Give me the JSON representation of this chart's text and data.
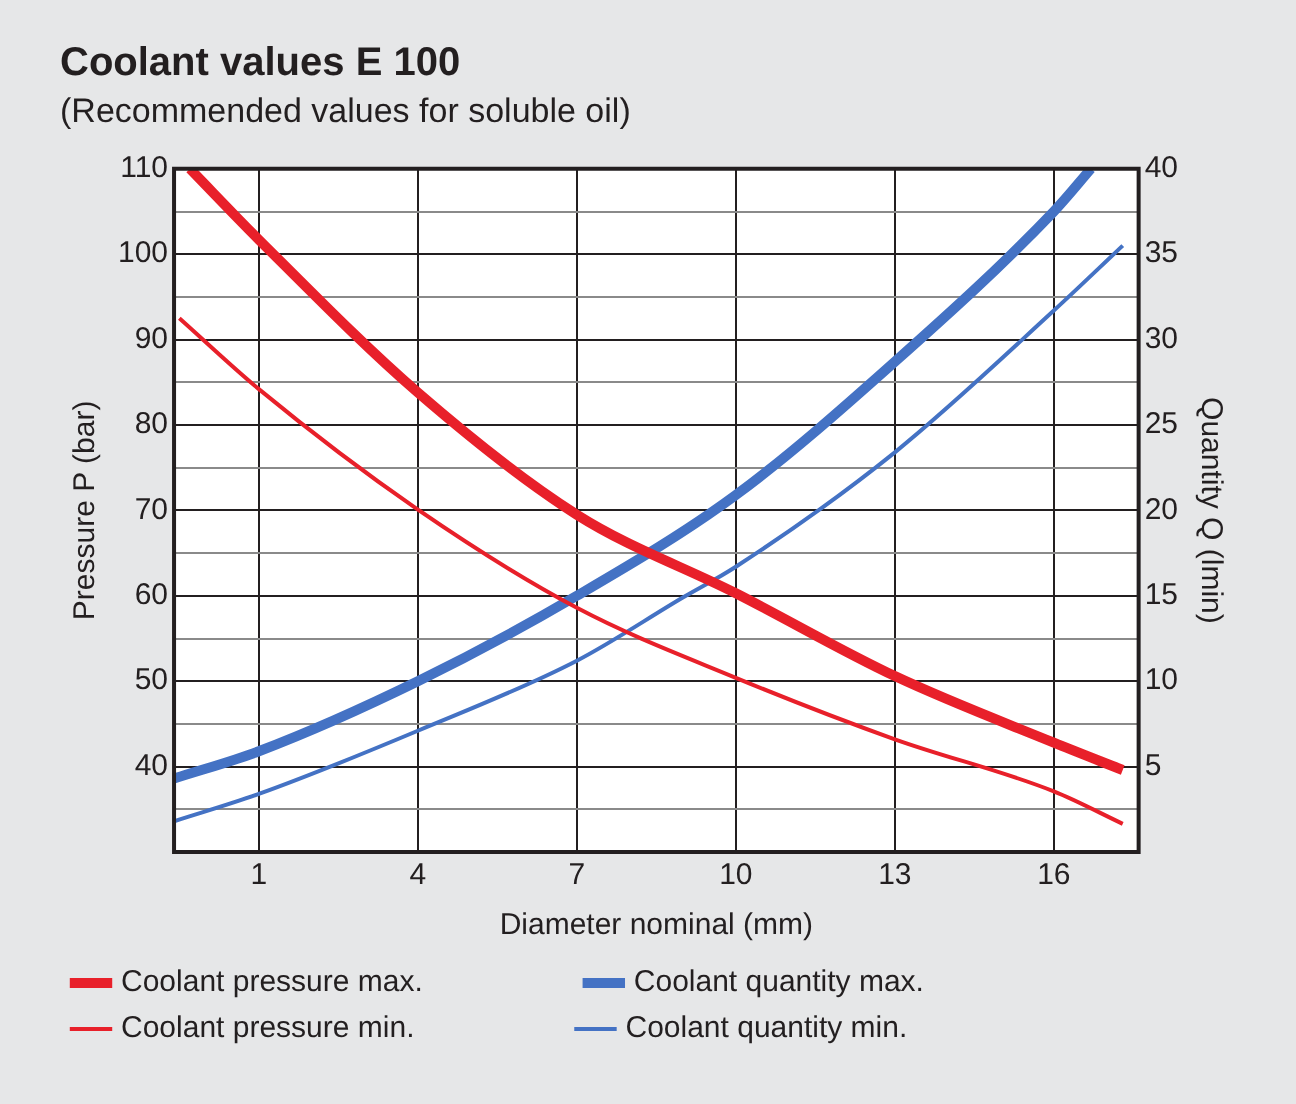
{
  "chart_data": {
    "type": "line",
    "title": "Coolant values E 100",
    "subtitle": "(Recommended values for soluble oil)",
    "xlabel": "Diameter nominal (mm)",
    "ylabel": "Pressure P (bar)",
    "y2label": "Quantity Q (lmin)",
    "xlim": [
      -0.6,
      17.6
    ],
    "xticks": [
      1,
      4,
      7,
      10,
      13,
      16
    ],
    "ylim": [
      30,
      110
    ],
    "yticks": [
      {
        "value": 35,
        "label": null
      },
      40,
      {
        "value": 45,
        "label": null
      },
      50,
      {
        "value": 55,
        "label": null
      },
      60,
      {
        "value": 65,
        "label": null
      },
      70,
      {
        "value": 75,
        "label": null
      },
      80,
      {
        "value": 85,
        "label": null
      },
      90,
      {
        "value": 95,
        "label": null
      },
      100,
      {
        "value": 105,
        "label": null
      },
      110
    ],
    "y2lim": [
      0,
      40
    ],
    "y2ticks": [
      5,
      10,
      15,
      20,
      25,
      30,
      35,
      40
    ],
    "grid": true,
    "legend": "bottom",
    "marker": "none",
    "line_style": "solid",
    "series": [
      {
        "name": "Coolant pressure max.",
        "color": "#e8202a",
        "x": [
          -0.3,
          1,
          4,
          7,
          10,
          13,
          16,
          17.3
        ],
        "values": [
          110,
          101.7,
          83.8,
          69.5,
          60.3,
          50.6,
          42.8,
          39.6
        ]
      },
      {
        "name": "Coolant pressure min.",
        "color": "#e8202a",
        "x": [
          -0.5,
          1,
          4,
          7,
          10,
          13,
          16,
          17.3
        ],
        "values": [
          92.5,
          84.2,
          70.1,
          58.6,
          50.4,
          43.2,
          37.1,
          33.3
        ]
      },
      {
        "name": "Coolant quantity max.",
        "color": "#4472c4",
        "axis": "y2",
        "x": [
          -0.6,
          1,
          4,
          7,
          10,
          13,
          16,
          16.7
        ],
        "values": [
          4.3,
          5.9,
          10,
          15,
          20.9,
          28.7,
          37.5,
          40
        ]
      },
      {
        "name": "Coolant quantity min.",
        "color": "#4472c4",
        "axis": "y2",
        "x": [
          -0.6,
          1,
          4,
          7,
          9,
          10,
          13,
          16,
          17.3
        ],
        "values": [
          1.8,
          3.4,
          7.1,
          11.2,
          14.9,
          16.7,
          23.4,
          31.7,
          35.5
        ]
      }
    ]
  }
}
